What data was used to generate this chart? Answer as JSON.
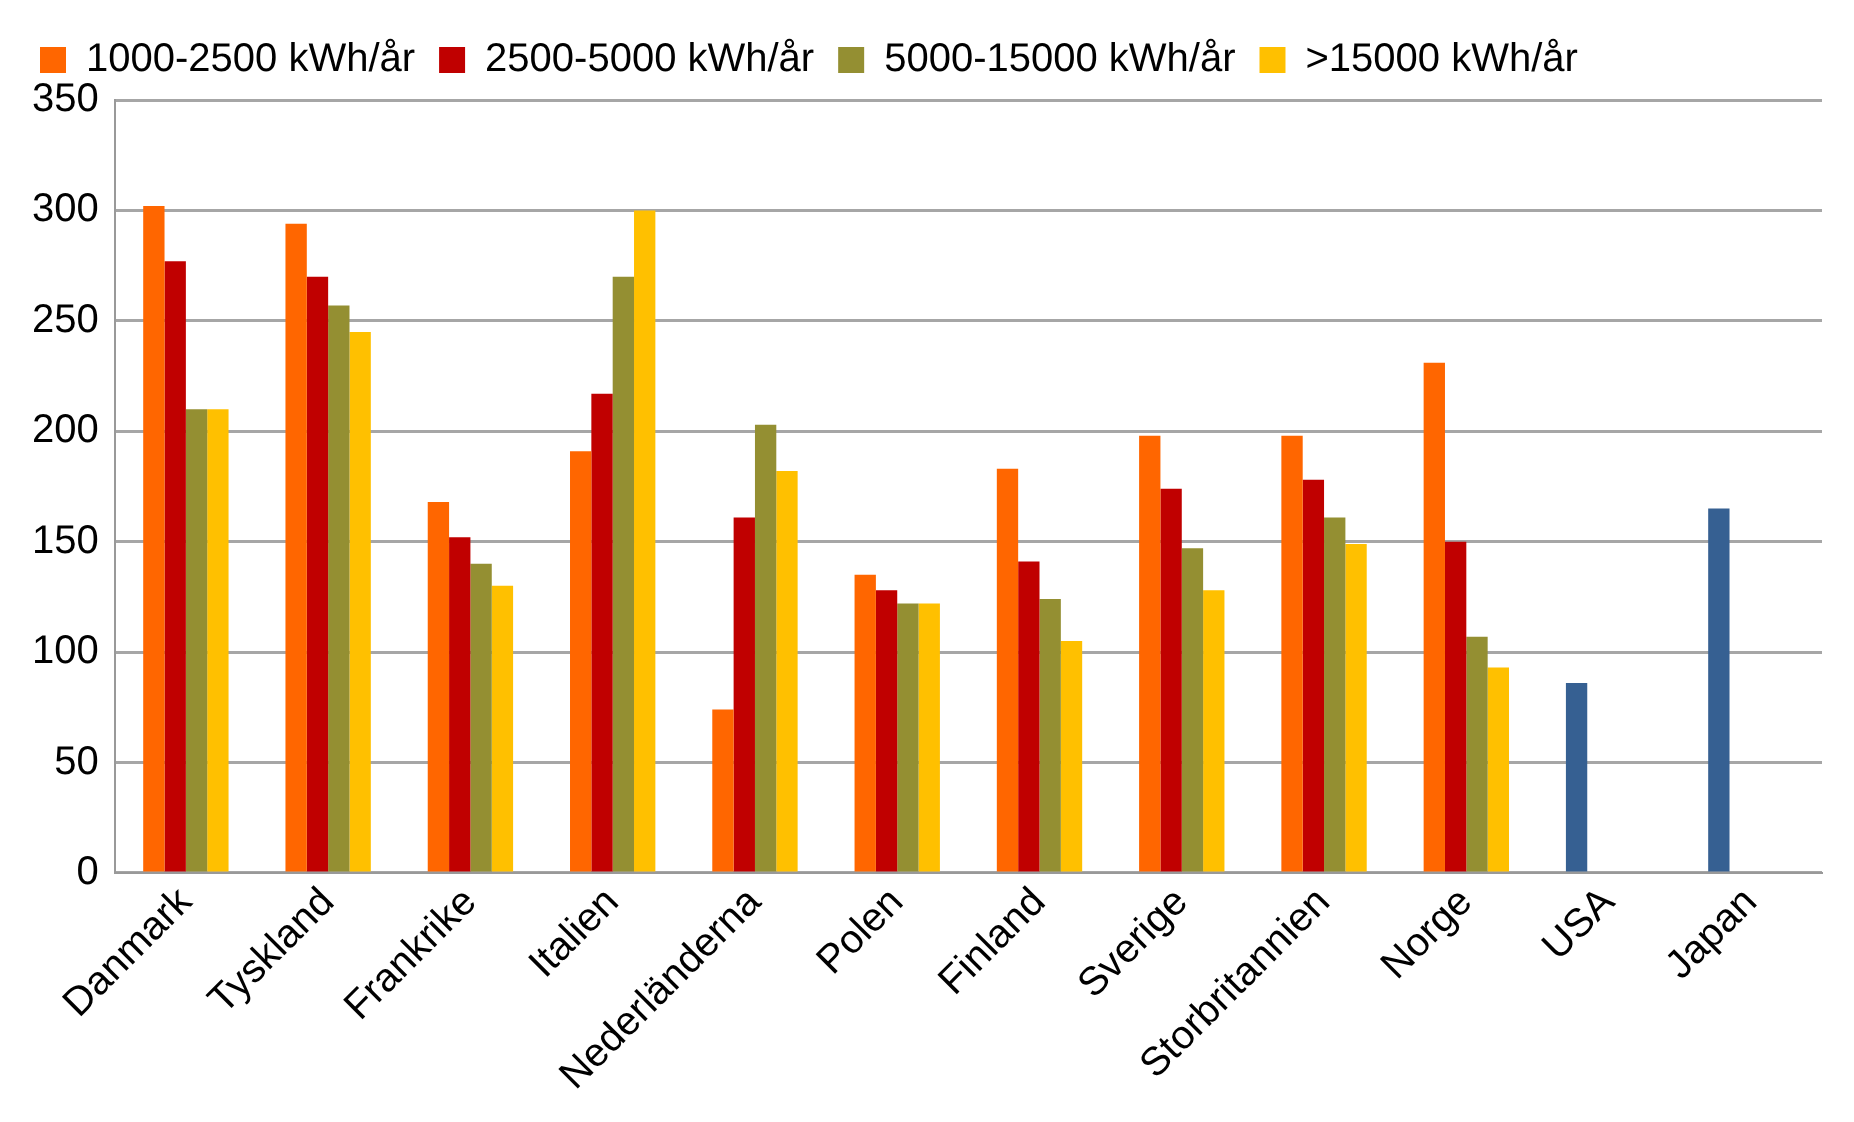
{
  "chart_data": {
    "type": "bar",
    "categories": [
      "Danmark",
      "Tyskland",
      "Frankrike",
      "Italien",
      "Nederländerna",
      "Polen",
      "Finland",
      "Sverige",
      "Storbritannien",
      "Norge",
      "USA",
      "Japan"
    ],
    "series": [
      {
        "name": "1000-2500 kWh/år",
        "color": "#ff6600",
        "colors": [
          "#ff6600",
          "#ff6600",
          "#ff6600",
          "#ff6600",
          "#ff6600",
          "#ff6600",
          "#ff6600",
          "#ff6600",
          "#ff6600",
          "#ff6600",
          "#366092",
          "#366092"
        ],
        "values": [
          302,
          294,
          168,
          191,
          74,
          135,
          183,
          198,
          198,
          231,
          86,
          165
        ]
      },
      {
        "name": "2500-5000 kWh/år",
        "color": "#c00000",
        "values": [
          277,
          270,
          152,
          217,
          161,
          128,
          141,
          174,
          178,
          150,
          null,
          null
        ]
      },
      {
        "name": "5000-15000 kWh/år",
        "color": "#948f32",
        "values": [
          210,
          257,
          140,
          270,
          203,
          122,
          124,
          147,
          161,
          107,
          null,
          null
        ]
      },
      {
        "name": ">15000 kWh/år",
        "color": "#ffc000",
        "values": [
          210,
          245,
          130,
          300,
          182,
          122,
          105,
          128,
          149,
          93,
          null,
          null
        ]
      }
    ],
    "ylim": [
      0,
      350
    ],
    "yticks": [
      0,
      50,
      100,
      150,
      200,
      250,
      300,
      350
    ],
    "grid": "y",
    "legend": "top"
  }
}
